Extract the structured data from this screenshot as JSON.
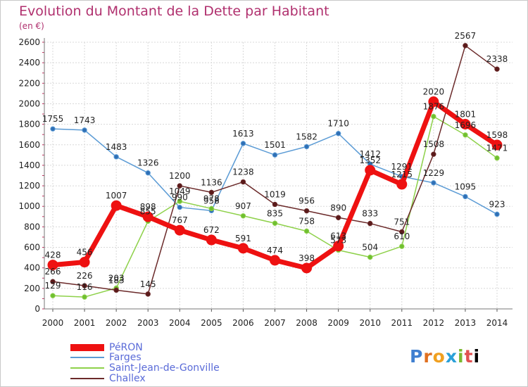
{
  "title": "Evolution du Montant de la Dette par Habitant",
  "subtitle": "(en €)",
  "logo_text": "Proxiti",
  "chart_data": {
    "type": "line",
    "title": "Evolution du Montant de la Dette par Habitant",
    "subtitle": "(en €)",
    "xlabel": "",
    "ylabel": "",
    "ylim": [
      0,
      2600
    ],
    "yticks": [
      0,
      200,
      400,
      600,
      800,
      1000,
      1200,
      1400,
      1600,
      1800,
      2000,
      2200,
      2400,
      2600
    ],
    "grid": true,
    "legend_position": "bottom-left",
    "x": [
      "2000",
      "2001",
      "2002",
      "2003",
      "2004",
      "2005",
      "2006",
      "2007",
      "2008",
      "2009",
      "2010",
      "2011",
      "2012",
      "2013",
      "2014"
    ],
    "series": [
      {
        "name": "Farges",
        "color": "#5b9bd5",
        "values": [
          1755,
          1743,
          1483,
          1326,
          990,
          958,
          1613,
          1501,
          1582,
          1710,
          1412,
          1291,
          1229,
          1095,
          923
        ],
        "labels": [
          "1755",
          "1743",
          "1483",
          "1326",
          "990",
          "958",
          "1613",
          "1501",
          "1582",
          "1710",
          "1412",
          "1291",
          "1229",
          "1095",
          "923"
        ]
      },
      {
        "name": "Saint-Jean-de-Gonville",
        "color": "#8ed14a",
        "values": [
          129,
          116,
          203,
          855,
          1049,
          978,
          907,
          835,
          758,
          573,
          504,
          610,
          1876,
          1696,
          1471
        ],
        "labels": [
          "129",
          "116",
          "203",
          "855",
          "1049",
          "978",
          "907",
          "835",
          "758",
          "573",
          "504",
          "610",
          "1876",
          "1696",
          "1471"
        ]
      },
      {
        "name": "Challex",
        "color": "#6b2a2a",
        "values": [
          266,
          226,
          183,
          145,
          1200,
          1136,
          1238,
          1019,
          956,
          890,
          833,
          751,
          1508,
          2567,
          2338
        ],
        "labels": [
          "266",
          "226",
          "183",
          "145",
          "1200",
          "1136",
          "1238",
          "1019",
          "956",
          "890",
          "833",
          "751",
          "1508",
          "2567",
          "2338"
        ]
      },
      {
        "name": "PéRON",
        "color": "#ee1111",
        "values": [
          428,
          456,
          1007,
          898,
          767,
          672,
          591,
          474,
          398,
          613,
          1352,
          1215,
          2020,
          1801,
          1598
        ],
        "labels": [
          "428",
          "456",
          "1007",
          "898",
          "767",
          "672",
          "591",
          "474",
          "398",
          "613",
          "1352",
          "1215",
          "2020",
          "1801",
          "1598"
        ]
      }
    ],
    "legend": [
      "PéRON",
      "Farges",
      "Saint-Jean-de-Gonville",
      "Challex"
    ]
  }
}
